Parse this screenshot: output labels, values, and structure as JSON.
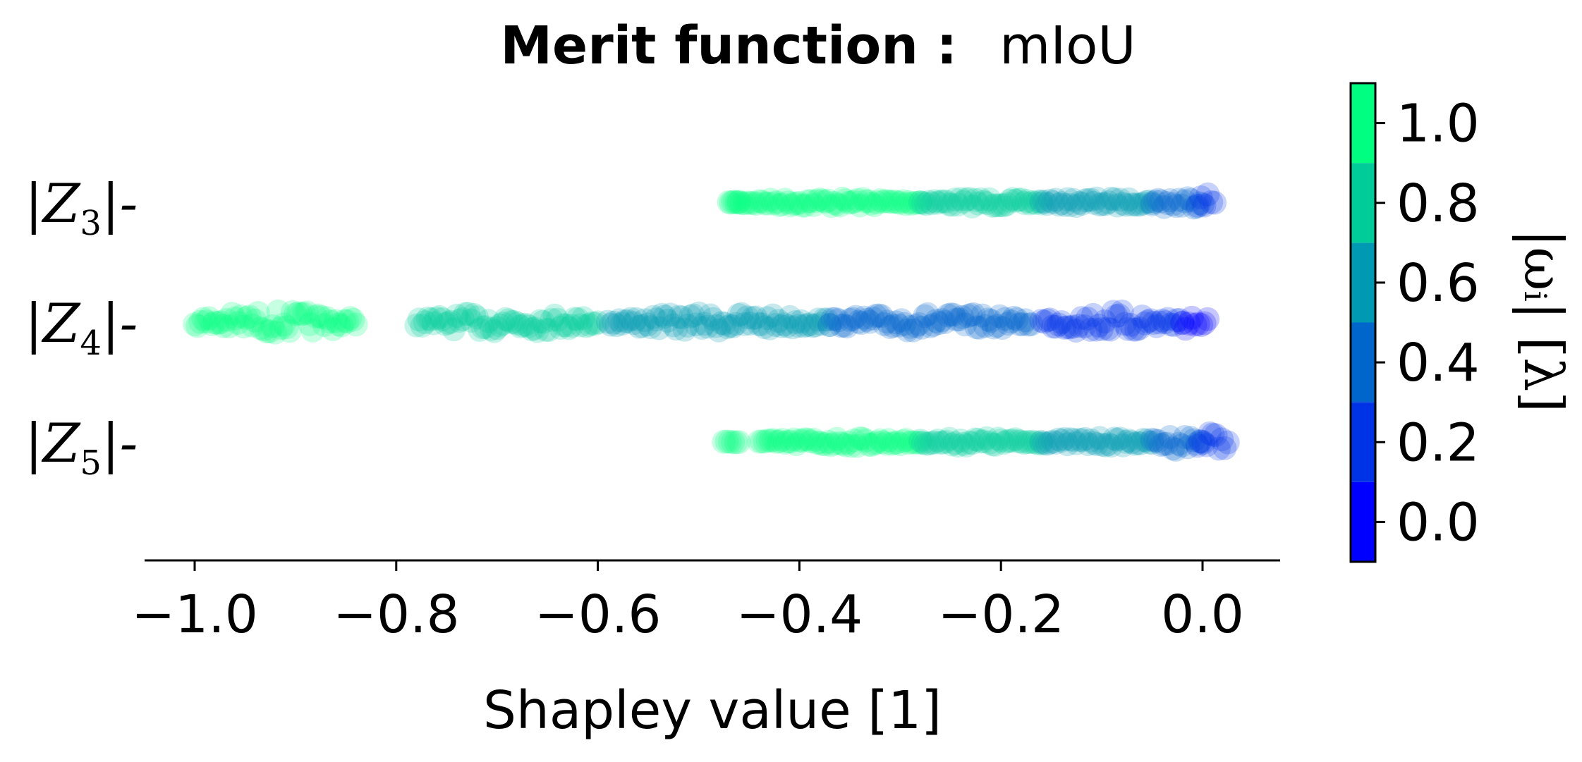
{
  "chart_data": {
    "type": "scatter",
    "subtype": "beeswarm",
    "title_bold": "Merit function :",
    "title_regular": "mIoU",
    "xlabel": "Shapley value [1]",
    "xlim": [
      -1.05,
      0.08
    ],
    "xticks": [
      -1.0,
      -0.8,
      -0.6,
      -0.4,
      -0.2,
      0.0
    ],
    "xtick_labels": [
      "−1.0",
      "−0.8",
      "−0.6",
      "−0.4",
      "−0.2",
      "0.0"
    ],
    "features": [
      {
        "prefix": "|Z",
        "sub": "3",
        "suffix": "|-"
      },
      {
        "prefix": "|Z",
        "sub": "4",
        "suffix": "|-"
      },
      {
        "prefix": "|Z",
        "sub": "5",
        "suffix": "|-"
      }
    ],
    "colorbar": {
      "label": "|ωᵢ| [λ]",
      "range": [
        -0.1,
        1.1
      ],
      "ticks": [
        0.0,
        0.2,
        0.4,
        0.6,
        0.8,
        1.0
      ],
      "tick_labels": [
        "0.0",
        "0.2",
        "0.4",
        "0.6",
        "0.8",
        "1.0"
      ],
      "levels": [
        {
          "from": -0.1,
          "to": 0.1,
          "color": "#0000ff"
        },
        {
          "from": 0.1,
          "to": 0.3,
          "color": "#0033e6"
        },
        {
          "from": 0.3,
          "to": 0.5,
          "color": "#0066cc"
        },
        {
          "from": 0.5,
          "to": 0.7,
          "color": "#0099b3"
        },
        {
          "from": 0.7,
          "to": 0.9,
          "color": "#00cc99"
        },
        {
          "from": 0.9,
          "to": 1.1,
          "color": "#00ff80"
        }
      ]
    },
    "series": [
      {
        "feature_index": 0,
        "segments": [
          {
            "x_start": -0.47,
            "x_end": -0.46,
            "weight": 1.0,
            "spread": 0.02
          },
          {
            "x_start": -0.46,
            "x_end": -0.28,
            "weight": 1.0,
            "spread": 0.12
          },
          {
            "x_start": -0.28,
            "x_end": -0.16,
            "weight": 0.8,
            "spread": 0.12
          },
          {
            "x_start": -0.16,
            "x_end": -0.05,
            "weight": 0.6,
            "spread": 0.12
          },
          {
            "x_start": -0.05,
            "x_end": 0.0,
            "weight": 0.4,
            "spread": 0.22
          },
          {
            "x_start": -0.005,
            "x_end": 0.012,
            "weight": 0.2,
            "spread": 0.32
          }
        ]
      },
      {
        "feature_index": 1,
        "segments": [
          {
            "x_start": -1.0,
            "x_end": -0.84,
            "weight": 1.0,
            "spread": 0.32
          },
          {
            "x_start": -0.78,
            "x_end": -0.6,
            "weight": 0.8,
            "spread": 0.28
          },
          {
            "x_start": -0.59,
            "x_end": -0.37,
            "weight": 0.6,
            "spread": 0.26
          },
          {
            "x_start": -0.37,
            "x_end": -0.17,
            "weight": 0.4,
            "spread": 0.26
          },
          {
            "x_start": -0.16,
            "x_end": -0.02,
            "weight": 0.2,
            "spread": 0.32
          },
          {
            "x_start": -0.02,
            "x_end": 0.005,
            "weight": 0.0,
            "spread": 0.36
          }
        ]
      },
      {
        "feature_index": 2,
        "segments": [
          {
            "x_start": -0.475,
            "x_end": -0.46,
            "weight": 1.0,
            "spread": 0.02
          },
          {
            "x_start": -0.44,
            "x_end": -0.28,
            "weight": 1.0,
            "spread": 0.12
          },
          {
            "x_start": -0.28,
            "x_end": -0.16,
            "weight": 0.8,
            "spread": 0.12
          },
          {
            "x_start": -0.16,
            "x_end": -0.05,
            "weight": 0.6,
            "spread": 0.12
          },
          {
            "x_start": -0.05,
            "x_end": 0.0,
            "weight": 0.4,
            "spread": 0.22
          },
          {
            "x_start": -0.005,
            "x_end": 0.025,
            "weight": 0.2,
            "spread": 0.32
          }
        ]
      }
    ]
  }
}
